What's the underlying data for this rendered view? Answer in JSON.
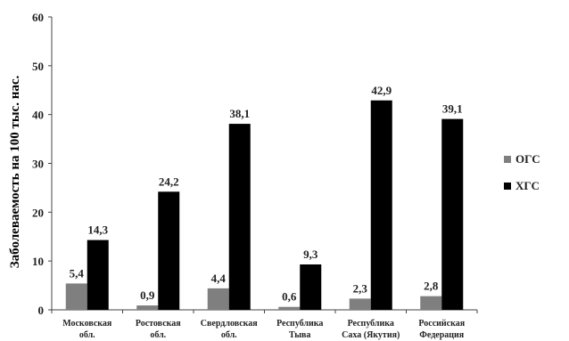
{
  "chart_data": {
    "type": "bar",
    "title": "",
    "xlabel": "",
    "ylabel": "Заболеваемость на 100 тыс. нас.",
    "ylim": [
      0,
      60
    ],
    "yticks": [
      0,
      10,
      20,
      30,
      40,
      50,
      60
    ],
    "grid": false,
    "legend_position": "right",
    "categories": [
      [
        "Московская",
        "обл."
      ],
      [
        "Ростовская",
        "обл."
      ],
      [
        "Свердловская",
        "обл."
      ],
      [
        "Республика",
        "Тыва"
      ],
      [
        "Республика",
        "Саха (Якутия)"
      ],
      [
        "Российская",
        "Федерация"
      ]
    ],
    "series": [
      {
        "name": "ОГС",
        "color": "#7f7f7f",
        "values": [
          5.4,
          0.9,
          4.4,
          0.6,
          2.3,
          2.8
        ],
        "labels": [
          "5,4",
          "0,9",
          "4,4",
          "0,6",
          "2,3",
          "2,8"
        ]
      },
      {
        "name": "ХГС",
        "color": "#000000",
        "values": [
          14.3,
          24.2,
          38.1,
          9.3,
          42.9,
          39.1
        ],
        "labels": [
          "14,3",
          "24,2",
          "38,1",
          "9,3",
          "42,9",
          "39,1"
        ]
      }
    ]
  }
}
